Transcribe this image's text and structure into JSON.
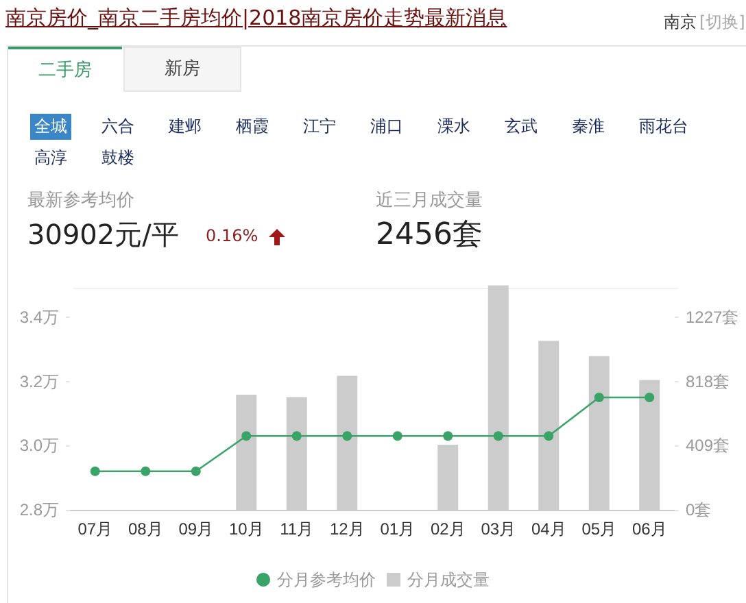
{
  "chart_data": {
    "type": "bar",
    "title": "南京房价_南京二手房均价|2018南京房价走势最新消息",
    "annotations": [
      "南京",
      "[切换]",
      "二手房",
      "新房",
      "全城",
      "六合",
      "建邺",
      "栖霞",
      "江宁",
      "浦口",
      "溧水",
      "玄武",
      "秦淮",
      "雨花台",
      "高淳",
      "鼓楼",
      "最新参考均价",
      "30902元/平",
      "0.16%",
      "近三月成交量",
      "2456套"
    ],
    "categories": [
      "07月",
      "08月",
      "09月",
      "10月",
      "11月",
      "12月",
      "01月",
      "02月",
      "03月",
      "04月",
      "05月",
      "06月"
    ],
    "series": [
      {
        "name": "分月参考均价",
        "type": "line",
        "color": "#3aa468",
        "values": [
          2.92,
          2.92,
          2.92,
          3.03,
          3.03,
          3.03,
          3.03,
          3.03,
          3.03,
          3.03,
          3.15,
          3.15
        ]
      },
      {
        "name": "分月成交量",
        "axis": "y2",
        "color": "#cccccc",
        "values": [
          null,
          null,
          null,
          733,
          718,
          854,
          null,
          415,
          1430,
          1076,
          979,
          827
        ]
      }
    ],
    "ylim": [
      2.8,
      3.5
    ],
    "yticks": [
      {
        "value": 2.8,
        "label": "2.8万"
      },
      {
        "value": 3.0,
        "label": "3.0万"
      },
      {
        "value": 3.2,
        "label": "3.2万"
      },
      {
        "value": 3.4,
        "label": "3.4万"
      }
    ],
    "y2lim": [
      0,
      1432
    ],
    "y2ticks": [
      {
        "value": 0,
        "label": "0套"
      },
      {
        "value": 409,
        "label": "409套"
      },
      {
        "value": 818,
        "label": "818套"
      },
      {
        "value": 1227,
        "label": "1227套"
      }
    ],
    "marker": "circle",
    "grid": false,
    "legend": "bottom"
  }
}
